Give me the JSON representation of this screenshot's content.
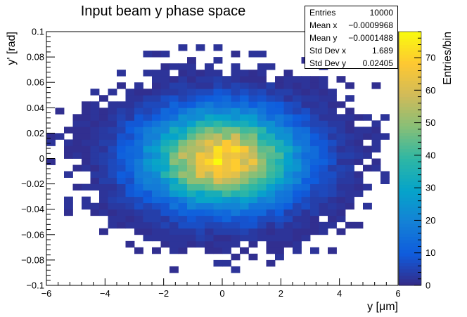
{
  "chart_data": {
    "type": "heatmap",
    "title": "Input beam y phase space",
    "xlabel": "y [μm]",
    "ylabel": "y' [rad]",
    "zlabel": "Entries/bin",
    "xlim": [
      -6,
      6
    ],
    "ylim": [
      -0.1,
      0.1
    ],
    "zlim": [
      0,
      78
    ],
    "nbins_x": 40,
    "nbins_y": 40,
    "x_ticks": [
      "−6",
      "−4",
      "−2",
      "0",
      "2",
      "4",
      "6"
    ],
    "y_ticks": [
      "−0.1",
      "−0.08",
      "−0.06",
      "−0.04",
      "−0.02",
      "0",
      "0.02",
      "0.04",
      "0.06",
      "0.08",
      "0.1"
    ],
    "z_ticks": [
      "0",
      "10",
      "20",
      "30",
      "40",
      "50",
      "60",
      "70"
    ],
    "distribution": {
      "center_x": 0.0,
      "center_y": 0.0,
      "sigma_x": 1.689,
      "sigma_y": 0.02405,
      "peak_entries": 78
    },
    "stats": [
      {
        "label": "Entries",
        "value": "10000"
      },
      {
        "label": "Mean x",
        "value": "−0.0009968"
      },
      {
        "label": "Mean y",
        "value": "−0.0001488"
      },
      {
        "label": "Std Dev x",
        "value": "1.689"
      },
      {
        "label": "Std Dev y",
        "value": "0.02405"
      }
    ],
    "palette": [
      "#352a87",
      "#0f5cdd",
      "#1481d6",
      "#06a4ca",
      "#2eb7a4",
      "#87bf77",
      "#d1bb59",
      "#fec832",
      "#f9fb0e"
    ]
  }
}
